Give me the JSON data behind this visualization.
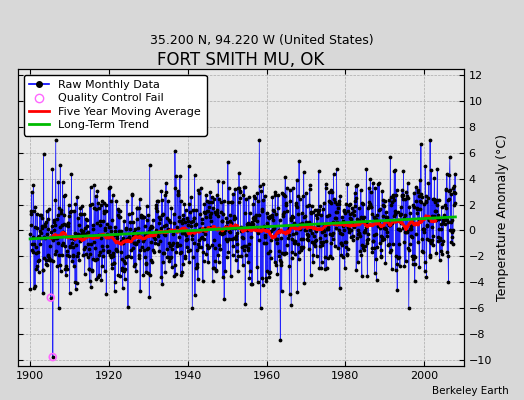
{
  "title": "FORT SMITH MU, OK",
  "subtitle": "35.200 N, 94.220 W (United States)",
  "ylabel": "Temperature Anomaly (°C)",
  "attribution": "Berkeley Earth",
  "xlim": [
    1897,
    2010
  ],
  "ylim": [
    -10.5,
    12.5
  ],
  "yticks": [
    -10,
    -8,
    -6,
    -4,
    -2,
    0,
    2,
    4,
    6,
    8,
    10,
    12
  ],
  "xticks": [
    1900,
    1920,
    1940,
    1960,
    1980,
    2000
  ],
  "bg_color": "#d8d8d8",
  "plot_bg": "#e8e8e8",
  "raw_color": "#0000ff",
  "dot_color": "#000000",
  "ma_color": "#ff0000",
  "trend_color": "#00bb00",
  "qc_color": "#ff66ff",
  "title_fontsize": 12,
  "subtitle_fontsize": 9,
  "legend_fontsize": 8,
  "tick_fontsize": 8
}
